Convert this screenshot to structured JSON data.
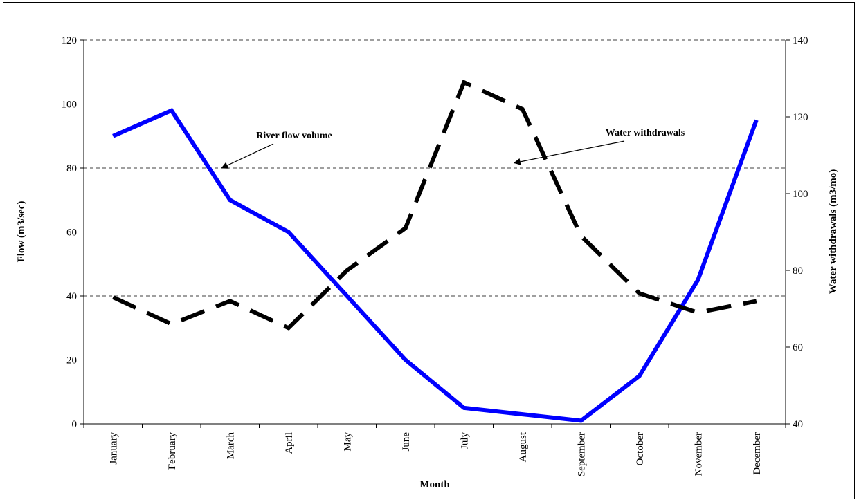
{
  "chart_data": {
    "type": "line",
    "categories": [
      "January",
      "February",
      "March",
      "April",
      "May",
      "June",
      "July",
      "August",
      "September",
      "October",
      "November",
      "December"
    ],
    "xlabel": "Month",
    "ylabel_left": "Flow (m3/sec)",
    "ylabel_right": "Water withdrawals (m3/mo)",
    "ylim_left": [
      0,
      120
    ],
    "yticks_left": [
      0,
      20,
      40,
      60,
      80,
      100,
      120
    ],
    "ylim_right": [
      40,
      140
    ],
    "yticks_right": [
      40,
      60,
      80,
      100,
      120,
      140
    ],
    "grid": "horizontal-dashed",
    "series": [
      {
        "axis": "left",
        "color": "#0000ff",
        "style": "solid",
        "values": [
          90,
          98,
          70,
          60,
          40,
          20,
          5,
          3,
          1,
          15,
          45,
          95
        ]
      },
      {
        "axis": "right",
        "color": "#000000",
        "style": "dashed",
        "values": [
          73,
          66,
          72,
          65,
          80,
          91,
          129,
          122,
          89,
          74,
          69,
          72
        ]
      }
    ],
    "annotations": [
      {
        "text": "River flow volume",
        "series": 0,
        "category": "March",
        "value": 80
      },
      {
        "text": "Water withdrawals",
        "series": 1,
        "category": "August",
        "value": 108
      }
    ]
  }
}
